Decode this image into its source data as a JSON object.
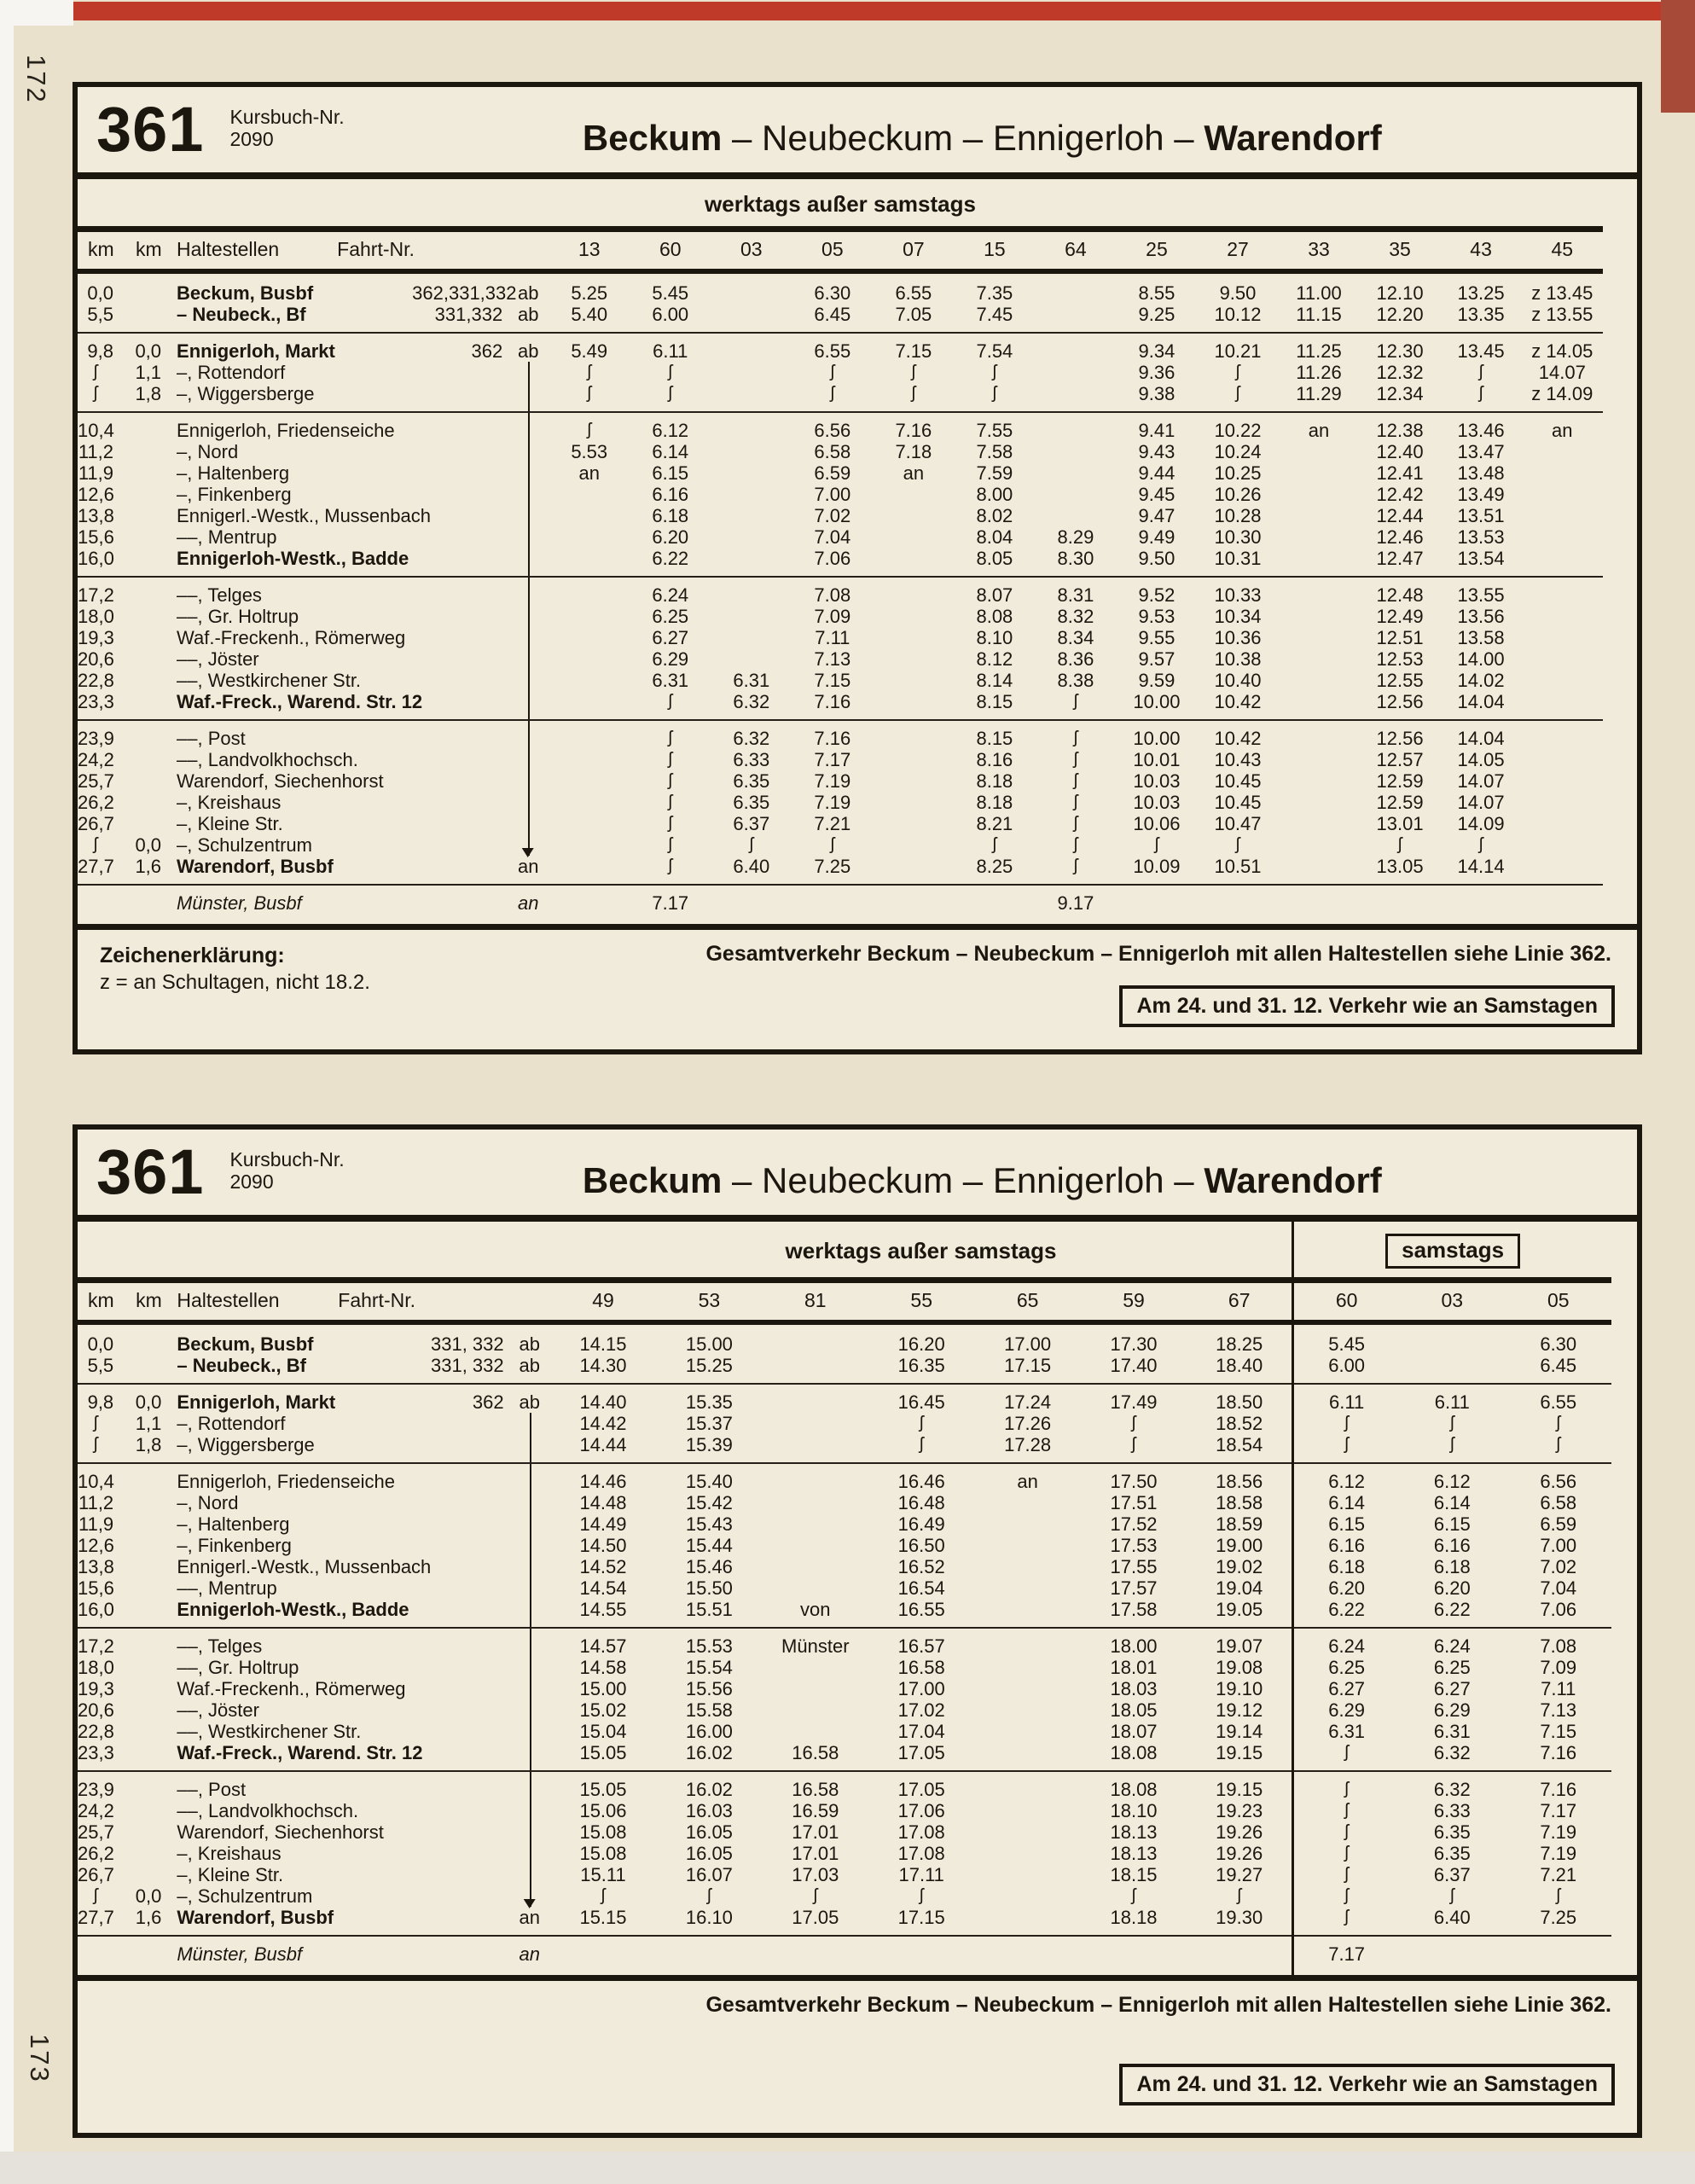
{
  "page": {
    "left_page_number": "172",
    "right_page_number": "173"
  },
  "symbols": {
    "wavy-line-icon": "ʃ",
    "down-arrow-icon": "↓"
  },
  "table1": {
    "line_number": "361",
    "kursbuch_label": "Kursbuch-Nr.",
    "kursbuch_number": "2090",
    "title_parts": [
      "Beckum",
      "Neubeckum",
      "Ennigerloh",
      "Warendorf"
    ],
    "service_note": "werktags außer samstags",
    "header": [
      "km",
      "km",
      "Haltestellen",
      "Fahrt-Nr."
    ],
    "trip_numbers": [
      "13",
      "60",
      "03",
      "05",
      "07",
      "15",
      "64",
      "25",
      "27",
      "33",
      "35",
      "43",
      "45"
    ],
    "rows": [
      {
        "km1": "0,0",
        "km2": "",
        "stop": "Beckum, Busbf",
        "fahrt": "362,331,332",
        "ab": "ab",
        "b": 1,
        "t": [
          "5.25",
          "5.45",
          "",
          "6.30",
          "6.55",
          "7.35",
          "",
          "8.55",
          "9.50",
          "11.00",
          "12.10",
          "13.25",
          "z 13.45"
        ]
      },
      {
        "km1": "5,5",
        "km2": "",
        "stop": "– Neubeck., Bf",
        "fahrt": "331,332",
        "ab": "ab",
        "b": 1,
        "r": 1,
        "t": [
          "5.40",
          "6.00",
          "",
          "6.45",
          "7.05",
          "7.45",
          "",
          "9.25",
          "10.12",
          "11.15",
          "12.20",
          "13.35",
          "z 13.55"
        ]
      },
      {
        "km1": "9,8",
        "km2": "0,0",
        "stop": "Ennigerloh, Markt",
        "fahrt": "362",
        "ab": "ab",
        "b": 1,
        "t": [
          "5.49",
          "6.11",
          "",
          "6.55",
          "7.15",
          "7.54",
          "",
          "9.34",
          "10.21",
          "11.25",
          "12.30",
          "13.45",
          "z 14.05"
        ]
      },
      {
        "km1": "ʃ",
        "km2": "1,1",
        "stop": "–, Rottendorf",
        "cl": 1,
        "t": [
          "ʃ",
          "ʃ",
          "",
          "ʃ",
          "ʃ",
          "ʃ",
          "",
          "9.36",
          "ʃ",
          "11.26",
          "12.32",
          "ʃ",
          "14.07"
        ]
      },
      {
        "km1": "ʃ",
        "km2": "1,8",
        "stop": "–, Wiggersberge",
        "cl": 1,
        "r": 1,
        "t": [
          "ʃ",
          "ʃ",
          "",
          "ʃ",
          "ʃ",
          "ʃ",
          "",
          "9.38",
          "ʃ",
          "11.29",
          "12.34",
          "ʃ",
          "z 14.09"
        ]
      },
      {
        "km1": "10,4",
        "km2": "",
        "stop": "Ennigerloh, Friedenseiche",
        "cl": 1,
        "t": [
          "ʃ",
          "6.12",
          "",
          "6.56",
          "7.16",
          "7.55",
          "",
          "9.41",
          "10.22",
          "an",
          "12.38",
          "13.46",
          "an"
        ]
      },
      {
        "km1": "11,2",
        "km2": "",
        "stop": "–, Nord",
        "cl": 1,
        "t": [
          "5.53",
          "6.14",
          "",
          "6.58",
          "7.18",
          "7.58",
          "",
          "9.43",
          "10.24",
          "",
          "12.40",
          "13.47",
          ""
        ]
      },
      {
        "km1": "11,9",
        "km2": "",
        "stop": "–, Haltenberg",
        "cl": 1,
        "t": [
          "an",
          "6.15",
          "",
          "6.59",
          "an",
          "7.59",
          "",
          "9.44",
          "10.25",
          "",
          "12.41",
          "13.48",
          ""
        ]
      },
      {
        "km1": "12,6",
        "km2": "",
        "stop": "–, Finkenberg",
        "cl": 1,
        "t": [
          "",
          "6.16",
          "",
          "7.00",
          "",
          "8.00",
          "",
          "9.45",
          "10.26",
          "",
          "12.42",
          "13.49",
          ""
        ]
      },
      {
        "km1": "13,8",
        "km2": "",
        "stop": "Ennigerl.-Westk., Mussenbach",
        "cl": 1,
        "t": [
          "",
          "6.18",
          "",
          "7.02",
          "",
          "8.02",
          "",
          "9.47",
          "10.28",
          "",
          "12.44",
          "13.51",
          ""
        ]
      },
      {
        "km1": "15,6",
        "km2": "",
        "stop": "––, Mentrup",
        "cl": 1,
        "t": [
          "",
          "6.20",
          "",
          "7.04",
          "",
          "8.04",
          "8.29",
          "9.49",
          "10.30",
          "",
          "12.46",
          "13.53",
          ""
        ]
      },
      {
        "km1": "16,0",
        "km2": "",
        "stop": "Ennigerloh-Westk., Badde",
        "b": 1,
        "r": 1,
        "cl": 1,
        "t": [
          "",
          "6.22",
          "",
          "7.06",
          "",
          "8.05",
          "8.30",
          "9.50",
          "10.31",
          "",
          "12.47",
          "13.54",
          ""
        ]
      },
      {
        "km1": "17,2",
        "km2": "",
        "stop": "––, Telges",
        "cl": 1,
        "t": [
          "",
          "6.24",
          "",
          "7.08",
          "",
          "8.07",
          "8.31",
          "9.52",
          "10.33",
          "",
          "12.48",
          "13.55",
          ""
        ]
      },
      {
        "km1": "18,0",
        "km2": "",
        "stop": "––, Gr. Holtrup",
        "cl": 1,
        "t": [
          "",
          "6.25",
          "",
          "7.09",
          "",
          "8.08",
          "8.32",
          "9.53",
          "10.34",
          "",
          "12.49",
          "13.56",
          ""
        ]
      },
      {
        "km1": "19,3",
        "km2": "",
        "stop": "Waf.-Freckenh., Römerweg",
        "cl": 1,
        "t": [
          "",
          "6.27",
          "",
          "7.11",
          "",
          "8.10",
          "8.34",
          "9.55",
          "10.36",
          "",
          "12.51",
          "13.58",
          ""
        ]
      },
      {
        "km1": "20,6",
        "km2": "",
        "stop": "––, Jöster",
        "cl": 1,
        "t": [
          "",
          "6.29",
          "",
          "7.13",
          "",
          "8.12",
          "8.36",
          "9.57",
          "10.38",
          "",
          "12.53",
          "14.00",
          ""
        ]
      },
      {
        "km1": "22,8",
        "km2": "",
        "stop": "––, Westkirchener Str.",
        "cl": 1,
        "t": [
          "",
          "6.31",
          "6.31",
          "7.15",
          "",
          "8.14",
          "8.38",
          "9.59",
          "10.40",
          "",
          "12.55",
          "14.02",
          ""
        ]
      },
      {
        "km1": "23,3",
        "km2": "",
        "stop": "Waf.-Freck., Warend. Str. 12",
        "b": 1,
        "r": 1,
        "cl": 1,
        "t": [
          "",
          "ʃ",
          "6.32",
          "7.16",
          "",
          "8.15",
          "ʃ",
          "10.00",
          "10.42",
          "",
          "12.56",
          "14.04",
          ""
        ]
      },
      {
        "km1": "23,9",
        "km2": "",
        "stop": "––, Post",
        "cl": 1,
        "t": [
          "",
          "ʃ",
          "6.32",
          "7.16",
          "",
          "8.15",
          "ʃ",
          "10.00",
          "10.42",
          "",
          "12.56",
          "14.04",
          ""
        ]
      },
      {
        "km1": "24,2",
        "km2": "",
        "stop": "––, Landvolkhochsch.",
        "cl": 1,
        "t": [
          "",
          "ʃ",
          "6.33",
          "7.17",
          "",
          "8.16",
          "ʃ",
          "10.01",
          "10.43",
          "",
          "12.57",
          "14.05",
          ""
        ]
      },
      {
        "km1": "25,7",
        "km2": "",
        "stop": "Warendorf, Siechenhorst",
        "cl": 1,
        "t": [
          "",
          "ʃ",
          "6.35",
          "7.19",
          "",
          "8.18",
          "ʃ",
          "10.03",
          "10.45",
          "",
          "12.59",
          "14.07",
          ""
        ]
      },
      {
        "km1": "26,2",
        "km2": "",
        "stop": "–, Kreishaus",
        "cl": 1,
        "t": [
          "",
          "ʃ",
          "6.35",
          "7.19",
          "",
          "8.18",
          "ʃ",
          "10.03",
          "10.45",
          "",
          "12.59",
          "14.07",
          ""
        ]
      },
      {
        "km1": "26,7",
        "km2": "",
        "stop": "–, Kleine Str.",
        "cl": 1,
        "t": [
          "",
          "ʃ",
          "6.37",
          "7.21",
          "",
          "8.21",
          "ʃ",
          "10.06",
          "10.47",
          "",
          "13.01",
          "14.09",
          ""
        ]
      },
      {
        "km1": "ʃ",
        "km2": "0,0",
        "stop": "–, Schulzentrum",
        "cl": 2,
        "t": [
          "",
          "ʃ",
          "ʃ",
          "ʃ",
          "",
          "ʃ",
          "ʃ",
          "ʃ",
          "ʃ",
          "",
          "ʃ",
          "ʃ",
          ""
        ]
      },
      {
        "km1": "27,7",
        "km2": "1,6",
        "stop": "Warendorf, Busbf",
        "ab": "an",
        "b": 1,
        "r": 1,
        "t": [
          "",
          "ʃ",
          "6.40",
          "7.25",
          "",
          "8.25",
          "ʃ",
          "10.09",
          "10.51",
          "",
          "13.05",
          "14.14",
          ""
        ]
      },
      {
        "km1": "",
        "km2": "",
        "stop": "Münster, Busbf",
        "ab": "an",
        "i": 1,
        "sp": 1,
        "t": [
          "",
          "7.17",
          "",
          "",
          "",
          "",
          "9.17",
          "",
          "",
          "",
          "",
          "",
          ""
        ]
      }
    ],
    "footer": {
      "legend_title": "Zeichenerklärung:",
      "legend_text": "z = an Schultagen, nicht 18.2.",
      "service_note": "Gesamtverkehr Beckum – Neubeckum – Ennigerloh mit allen Haltestellen siehe Linie 362.",
      "special_note": "Am 24. und 31. 12. Verkehr wie an Samstagen"
    }
  },
  "table2": {
    "line_number": "361",
    "kursbuch_label": "Kursbuch-Nr.",
    "kursbuch_number": "2090",
    "title_parts": [
      "Beckum",
      "Neubeckum",
      "Ennigerloh",
      "Warendorf"
    ],
    "service_note_weekday": "werktags außer samstags",
    "service_note_saturday": "samstags",
    "header": [
      "km",
      "km",
      "Haltestellen",
      "Fahrt-Nr."
    ],
    "trip_numbers": [
      "49",
      "53",
      "81",
      "55",
      "65",
      "59",
      "67",
      "60",
      "03",
      "05"
    ],
    "rows": [
      {
        "km1": "0,0",
        "km2": "",
        "stop": "Beckum, Busbf",
        "fahrt": "331, 332",
        "ab": "ab",
        "b": 1,
        "t": [
          "14.15",
          "15.00",
          "",
          "16.20",
          "17.00",
          "17.30",
          "18.25",
          "5.45",
          "",
          "6.30"
        ]
      },
      {
        "km1": "5,5",
        "km2": "",
        "stop": "– Neubeck., Bf",
        "fahrt": "331, 332",
        "ab": "ab",
        "b": 1,
        "r": 1,
        "t": [
          "14.30",
          "15.25",
          "",
          "16.35",
          "17.15",
          "17.40",
          "18.40",
          "6.00",
          "",
          "6.45"
        ]
      },
      {
        "km1": "9,8",
        "km2": "0,0",
        "stop": "Ennigerloh, Markt",
        "fahrt": "362",
        "ab": "ab",
        "b": 1,
        "t": [
          "14.40",
          "15.35",
          "",
          "16.45",
          "17.24",
          "17.49",
          "18.50",
          "6.11",
          "6.11",
          "6.55"
        ]
      },
      {
        "km1": "ʃ",
        "km2": "1,1",
        "stop": "–, Rottendorf",
        "cl": 1,
        "t": [
          "14.42",
          "15.37",
          "",
          "ʃ",
          "17.26",
          "ʃ",
          "18.52",
          "ʃ",
          "ʃ",
          "ʃ"
        ]
      },
      {
        "km1": "ʃ",
        "km2": "1,8",
        "stop": "–, Wiggersberge",
        "cl": 1,
        "r": 1,
        "t": [
          "14.44",
          "15.39",
          "",
          "ʃ",
          "17.28",
          "ʃ",
          "18.54",
          "ʃ",
          "ʃ",
          "ʃ"
        ]
      },
      {
        "km1": "10,4",
        "km2": "",
        "stop": "Ennigerloh, Friedenseiche",
        "cl": 1,
        "t": [
          "14.46",
          "15.40",
          "",
          "16.46",
          "an",
          "17.50",
          "18.56",
          "6.12",
          "6.12",
          "6.56"
        ]
      },
      {
        "km1": "11,2",
        "km2": "",
        "stop": "–, Nord",
        "cl": 1,
        "t": [
          "14.48",
          "15.42",
          "",
          "16.48",
          "",
          "17.51",
          "18.58",
          "6.14",
          "6.14",
          "6.58"
        ]
      },
      {
        "km1": "11,9",
        "km2": "",
        "stop": "–, Haltenberg",
        "cl": 1,
        "t": [
          "14.49",
          "15.43",
          "",
          "16.49",
          "",
          "17.52",
          "18.59",
          "6.15",
          "6.15",
          "6.59"
        ]
      },
      {
        "km1": "12,6",
        "km2": "",
        "stop": "–, Finkenberg",
        "cl": 1,
        "t": [
          "14.50",
          "15.44",
          "",
          "16.50",
          "",
          "17.53",
          "19.00",
          "6.16",
          "6.16",
          "7.00"
        ]
      },
      {
        "km1": "13,8",
        "km2": "",
        "stop": "Ennigerl.-Westk., Mussenbach",
        "cl": 1,
        "t": [
          "14.52",
          "15.46",
          "",
          "16.52",
          "",
          "17.55",
          "19.02",
          "6.18",
          "6.18",
          "7.02"
        ]
      },
      {
        "km1": "15,6",
        "km2": "",
        "stop": "––, Mentrup",
        "cl": 1,
        "t": [
          "14.54",
          "15.50",
          "",
          "16.54",
          "",
          "17.57",
          "19.04",
          "6.20",
          "6.20",
          "7.04"
        ]
      },
      {
        "km1": "16,0",
        "km2": "",
        "stop": "Ennigerloh-Westk., Badde",
        "b": 1,
        "r": 1,
        "cl": 1,
        "t": [
          "14.55",
          "15.51",
          "von",
          "16.55",
          "",
          "17.58",
          "19.05",
          "6.22",
          "6.22",
          "7.06"
        ]
      },
      {
        "km1": "17,2",
        "km2": "",
        "stop": "––, Telges",
        "cl": 1,
        "t": [
          "14.57",
          "15.53",
          "Münster",
          "16.57",
          "",
          "18.00",
          "19.07",
          "6.24",
          "6.24",
          "7.08"
        ]
      },
      {
        "km1": "18,0",
        "km2": "",
        "stop": "––, Gr. Holtrup",
        "cl": 1,
        "t": [
          "14.58",
          "15.54",
          "",
          "16.58",
          "",
          "18.01",
          "19.08",
          "6.25",
          "6.25",
          "7.09"
        ]
      },
      {
        "km1": "19,3",
        "km2": "",
        "stop": "Waf.-Freckenh., Römerweg",
        "cl": 1,
        "t": [
          "15.00",
          "15.56",
          "",
          "17.00",
          "",
          "18.03",
          "19.10",
          "6.27",
          "6.27",
          "7.11"
        ]
      },
      {
        "km1": "20,6",
        "km2": "",
        "stop": "––, Jöster",
        "cl": 1,
        "t": [
          "15.02",
          "15.58",
          "",
          "17.02",
          "",
          "18.05",
          "19.12",
          "6.29",
          "6.29",
          "7.13"
        ]
      },
      {
        "km1": "22,8",
        "km2": "",
        "stop": "––, Westkirchener Str.",
        "cl": 1,
        "t": [
          "15.04",
          "16.00",
          "",
          "17.04",
          "",
          "18.07",
          "19.14",
          "6.31",
          "6.31",
          "7.15"
        ]
      },
      {
        "km1": "23,3",
        "km2": "",
        "stop": "Waf.-Freck., Warend. Str. 12",
        "b": 1,
        "r": 1,
        "cl": 1,
        "t": [
          "15.05",
          "16.02",
          "16.58",
          "17.05",
          "",
          "18.08",
          "19.15",
          "ʃ",
          "6.32",
          "7.16"
        ]
      },
      {
        "km1": "23,9",
        "km2": "",
        "stop": "––, Post",
        "cl": 1,
        "t": [
          "15.05",
          "16.02",
          "16.58",
          "17.05",
          "",
          "18.08",
          "19.15",
          "ʃ",
          "6.32",
          "7.16"
        ]
      },
      {
        "km1": "24,2",
        "km2": "",
        "stop": "––, Landvolkhochsch.",
        "cl": 1,
        "t": [
          "15.06",
          "16.03",
          "16.59",
          "17.06",
          "",
          "18.10",
          "19.23",
          "ʃ",
          "6.33",
          "7.17"
        ]
      },
      {
        "km1": "25,7",
        "km2": "",
        "stop": "Warendorf, Siechenhorst",
        "cl": 1,
        "t": [
          "15.08",
          "16.05",
          "17.01",
          "17.08",
          "",
          "18.13",
          "19.26",
          "ʃ",
          "6.35",
          "7.19"
        ]
      },
      {
        "km1": "26,2",
        "km2": "",
        "stop": "–, Kreishaus",
        "cl": 1,
        "t": [
          "15.08",
          "16.05",
          "17.01",
          "17.08",
          "",
          "18.13",
          "19.26",
          "ʃ",
          "6.35",
          "7.19"
        ]
      },
      {
        "km1": "26,7",
        "km2": "",
        "stop": "–, Kleine Str.",
        "cl": 1,
        "t": [
          "15.11",
          "16.07",
          "17.03",
          "17.11",
          "",
          "18.15",
          "19.27",
          "ʃ",
          "6.37",
          "7.21"
        ]
      },
      {
        "km1": "ʃ",
        "km2": "0,0",
        "stop": "–, Schulzentrum",
        "cl": 2,
        "t": [
          "ʃ",
          "ʃ",
          "ʃ",
          "ʃ",
          "",
          "ʃ",
          "ʃ",
          "ʃ",
          "ʃ",
          "ʃ"
        ]
      },
      {
        "km1": "27,7",
        "km2": "1,6",
        "stop": "Warendorf, Busbf",
        "ab": "an",
        "b": 1,
        "r": 1,
        "t": [
          "15.15",
          "16.10",
          "17.05",
          "17.15",
          "",
          "18.18",
          "19.30",
          "ʃ",
          "6.40",
          "7.25"
        ]
      },
      {
        "km1": "",
        "km2": "",
        "stop": "Münster, Busbf",
        "ab": "an",
        "i": 1,
        "sp": 1,
        "t": [
          "",
          "",
          "",
          "",
          "",
          "",
          "",
          "7.17",
          "",
          ""
        ]
      }
    ],
    "footer": {
      "service_note": "Gesamtverkehr Beckum – Neubeckum – Ennigerloh mit allen Haltestellen siehe Linie 362.",
      "special_note": "Am 24. und 31. 12. Verkehr wie an Samstagen"
    }
  }
}
